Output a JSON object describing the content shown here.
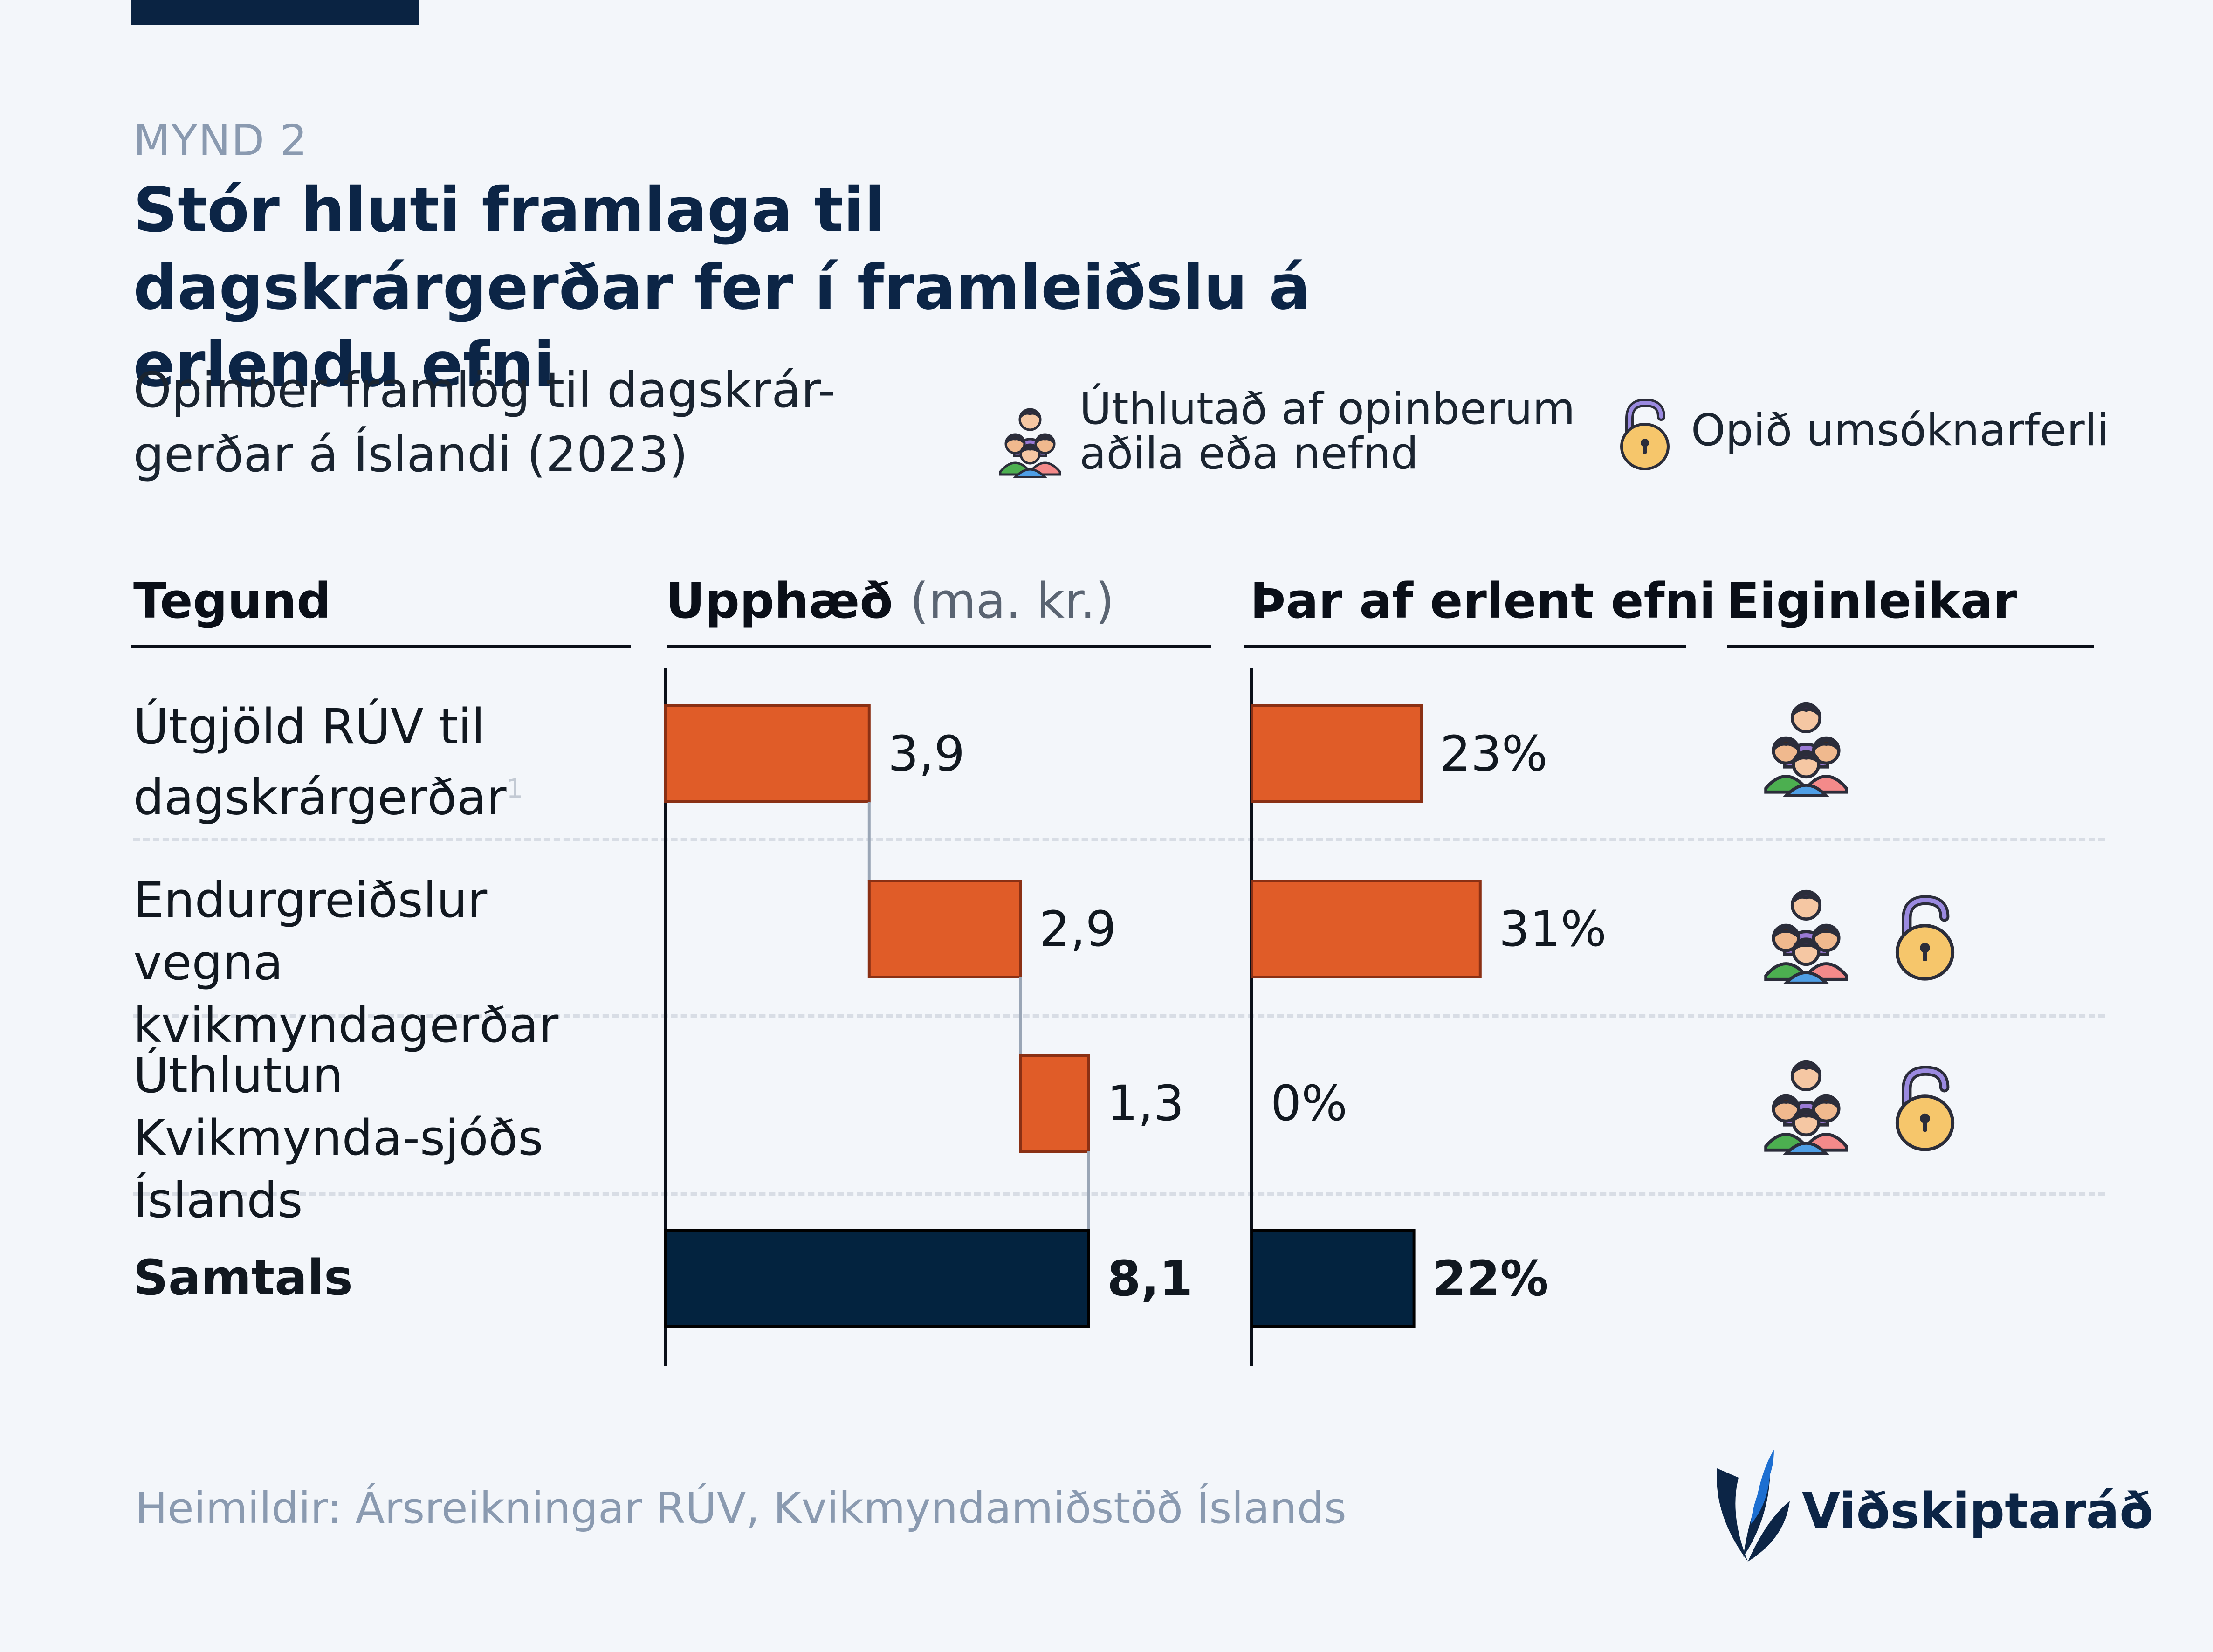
{
  "kicker": "MYND 2",
  "title": "Stór hluti framlaga til dagskrárgerðar fer í framleiðslu á erlendu efni",
  "subtitle": "Opinber framlög til dagskrár-gerðar á Íslandi (2023)",
  "legend": {
    "committee": "Úthlutað af opinberum aðila eða nefnd",
    "open": "Opið umsóknarferli"
  },
  "columns": {
    "type": "Tegund",
    "amount": "Upphæð",
    "amount_unit": "(ma. kr.)",
    "foreign": "Þar af erlent efni",
    "properties": "Eiginleikar"
  },
  "rows": [
    {
      "label": "Útgjöld RÚV til dagskrárgerðar",
      "footnote": "1",
      "amount_label": "3,9",
      "foreign_label": "23%",
      "icons": [
        "people-icon"
      ]
    },
    {
      "label": "Endurgreiðslur vegna kvikmyndagerðar",
      "amount_label": "2,9",
      "foreign_label": "31%",
      "icons": [
        "people-icon",
        "unlocked-padlock-icon"
      ]
    },
    {
      "label": "Úthlutun Kvikmynda-sjóðs Íslands",
      "amount_label": "1,3",
      "foreign_label": "0%",
      "icons": [
        "people-icon",
        "unlocked-padlock-icon"
      ]
    }
  ],
  "total": {
    "label": "Samtals",
    "amount_label": "8,1",
    "foreign_label": "22%"
  },
  "source": "Heimildir: Ársreikningar RÚV, Kvikmyndamiðstöð Íslands",
  "logo": {
    "name": "Viðskiptaráð"
  },
  "colors": {
    "bar": "#e05c28",
    "bar_stroke": "#8a3014",
    "total": "#03233f",
    "accent": "#0c2546",
    "logo_blue": "#1d6fd1"
  },
  "chart_data": [
    {
      "type": "bar",
      "subtype": "waterfall",
      "categories": [
        "Útgjöld RÚV til dagskrárgerðar",
        "Endurgreiðslur vegna kvikmyndagerðar",
        "Úthlutun Kvikmynda-sjóðs Íslands",
        "Samtals"
      ],
      "values": [
        3.9,
        2.9,
        1.3,
        8.1
      ],
      "xlabel": "Upphæð (ma. kr.)",
      "xlim": [
        0,
        8.1
      ]
    },
    {
      "type": "bar",
      "categories": [
        "Útgjöld RÚV til dagskrárgerðar",
        "Endurgreiðslur vegna kvikmyndagerðar",
        "Úthlutun Kvikmynda-sjóðs Íslands",
        "Samtals"
      ],
      "values": [
        23,
        31,
        0,
        22
      ],
      "xlabel": "Þar af erlent efni",
      "unit": "%"
    }
  ]
}
